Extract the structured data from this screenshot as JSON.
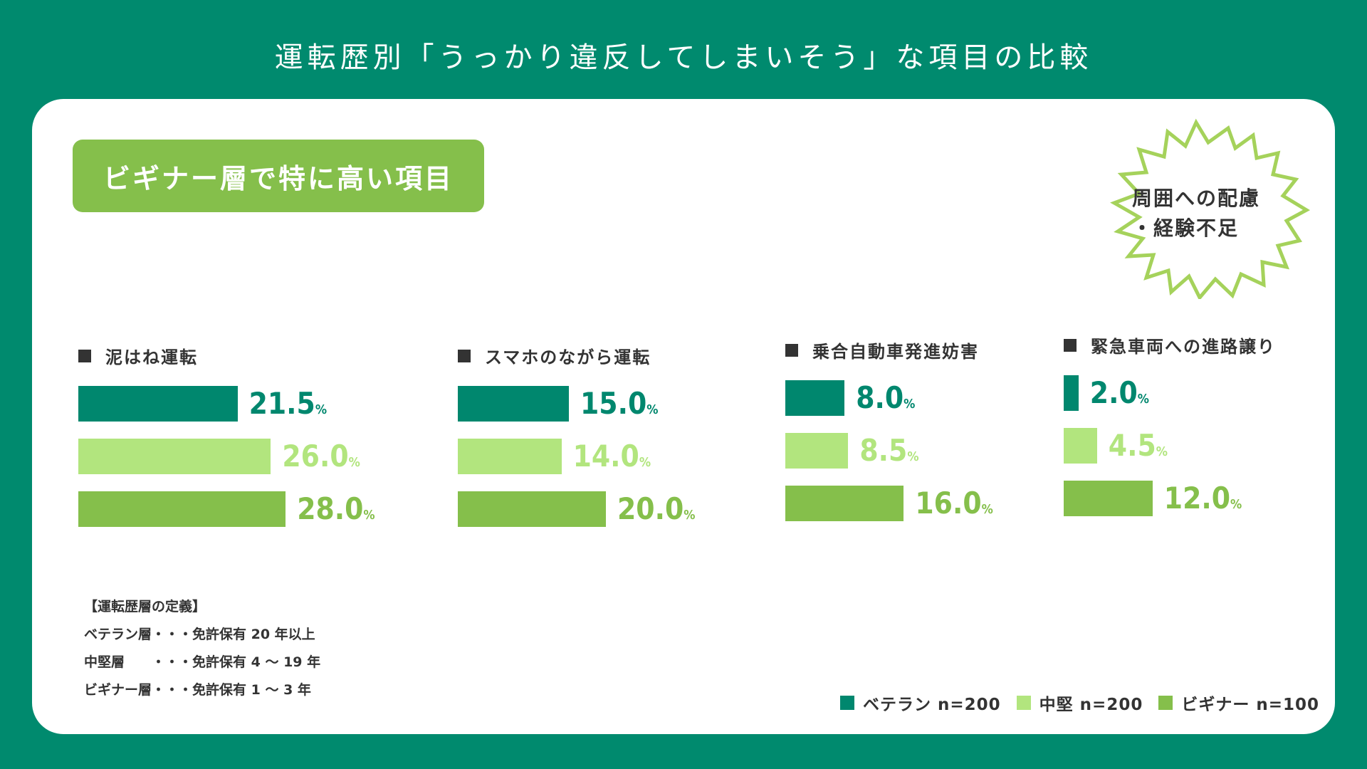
{
  "title": "運転歴別「うっかり違反してしまいそう」な項目の比較",
  "banner": "ビギナー層で特に高い項目",
  "callout": {
    "line1": "周囲への配慮",
    "line2": "・経験不足"
  },
  "percent_unit": "%",
  "colors": {
    "background": "#008a6e",
    "veteran": "#00876e",
    "mid": "#b2e57e",
    "beginner": "#85bf4b",
    "banner": "#85bf4b"
  },
  "chart_data": {
    "type": "bar",
    "orientation": "horizontal",
    "categories": [
      "泥はね運転",
      "スマホのながら運転",
      "乗合自動車発進妨害",
      "緊急車両への進路譲り"
    ],
    "series": [
      {
        "name": "ベテラン",
        "n": "n=200",
        "values": [
          21.5,
          15.0,
          8.0,
          2.0
        ]
      },
      {
        "name": "中堅",
        "n": "n=200",
        "values": [
          26.0,
          14.0,
          8.5,
          4.5
        ]
      },
      {
        "name": "ビギナー",
        "n": "n=100",
        "values": [
          28.0,
          20.0,
          16.0,
          12.0
        ]
      }
    ],
    "value_labels": [
      [
        "21.5",
        "26.0",
        "28.0"
      ],
      [
        "15.0",
        "14.0",
        "20.0"
      ],
      [
        "8.0",
        "8.5",
        "16.0"
      ],
      [
        "2.0",
        "4.5",
        "12.0"
      ]
    ],
    "unit": "%"
  },
  "definitions": {
    "heading": "【運転歴層の定義】",
    "lines": [
      "ベテラン層・・・免許保有 20 年以上",
      "中堅層　　・・・免許保有 4 〜 19 年",
      "ビギナー層・・・免許保有 1 〜 3 年"
    ]
  },
  "legend": [
    {
      "label": "ベテラン n=200"
    },
    {
      "label": "中堅 n=200"
    },
    {
      "label": "ビギナー n=100"
    }
  ]
}
